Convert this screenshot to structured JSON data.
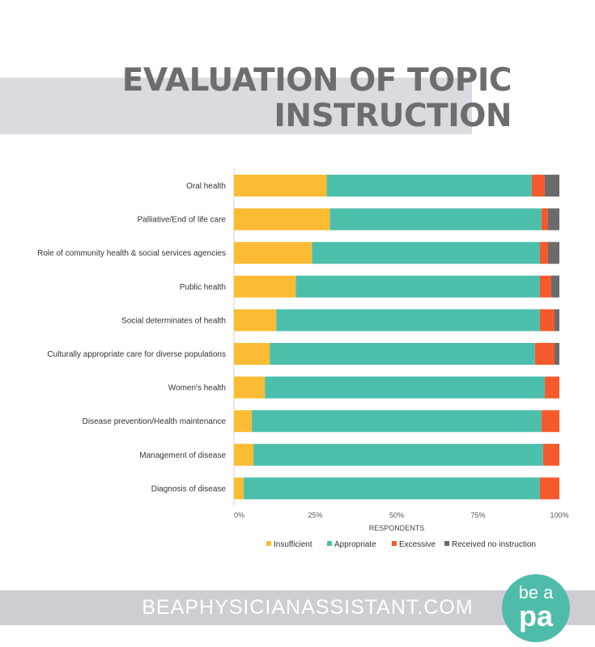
{
  "header": {
    "title_line1": "EVALUATION OF TOPIC",
    "title_line2": "INSTRUCTION"
  },
  "footer": {
    "site": "BEAPHYSICIANASSISTANT.COM",
    "logo_top": "be a",
    "logo_bottom": "pa"
  },
  "colors": {
    "insufficient": "#fbbc34",
    "appropriate": "#4cbfac",
    "excessive": "#f55a2c",
    "no_instruction": "#6b6b6b",
    "title_band": "#dcdae0",
    "footer_band": "#cfcdd3",
    "logo": "#4fbca9"
  },
  "chart_data": {
    "type": "bar",
    "orientation": "horizontal",
    "stacked": true,
    "title": "",
    "xlabel": "RESPONDENTS",
    "ylabel": "",
    "xlim": [
      0,
      100
    ],
    "xticks": [
      "0%",
      "25%",
      "50%",
      "75%",
      "100%"
    ],
    "legend_position": "bottom",
    "grid": false,
    "categories": [
      "Oral health",
      "Palliative/End of life care",
      "Role of community health & social services agencies",
      "Public health",
      "Social determinates of health",
      "Culturally appropriate care for diverse populations",
      "Women's health",
      "Disease prevention/Health maintenance",
      "Management of disease",
      "Diagnosis of disease"
    ],
    "series": [
      {
        "name": "Insufficient",
        "values": [
          28.5,
          29.5,
          24,
          19,
          13,
          11,
          9.5,
          5.5,
          6,
          3
        ]
      },
      {
        "name": "Appropriate",
        "values": [
          63,
          65,
          70,
          75,
          81,
          81.5,
          86,
          89,
          89,
          91
        ]
      },
      {
        "name": "Excessive",
        "values": [
          4,
          2,
          2.5,
          3.5,
          4.5,
          6,
          4.5,
          5.5,
          5,
          6
        ]
      },
      {
        "name": "Received no instruction",
        "values": [
          4.5,
          3.5,
          3.5,
          2.5,
          1.5,
          1.5,
          0,
          0,
          0,
          0
        ]
      }
    ]
  }
}
